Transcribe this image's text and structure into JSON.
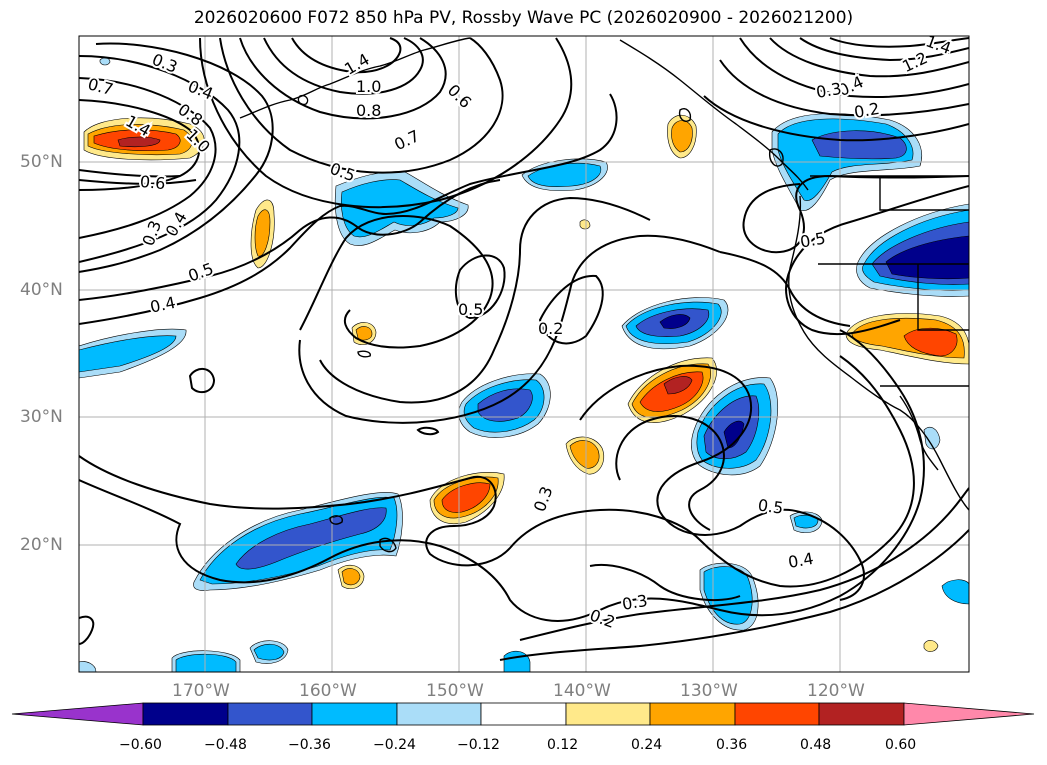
{
  "title": "2026020600 F072 850 hPa PV, Rossby Wave PC (2026020900 - 2026021200)",
  "lat_labels": [
    "50°N",
    "40°N",
    "30°N",
    "20°N"
  ],
  "lon_labels": [
    "170°W",
    "160°W",
    "150°W",
    "140°W",
    "130°W",
    "120°W"
  ],
  "colorbar": {
    "ticks": [
      "−0.60",
      "−0.48",
      "−0.36",
      "−0.24",
      "−0.12",
      "0.12",
      "0.24",
      "0.36",
      "0.48",
      "0.60"
    ],
    "colors": [
      "#9933cc",
      "#00008b",
      "#3355cc",
      "#00bbff",
      "#aaddf8",
      "#ffffff",
      "#ffe98a",
      "#ffa500",
      "#ff4500",
      "#b22222",
      "#ff88aa"
    ]
  },
  "contour_labels": {
    "c1": "0.3",
    "c2": "0.4",
    "c3": "0.7",
    "c4": "0.8",
    "c5": "1.0",
    "c6": "1.4",
    "c7": "0.6",
    "c8": "0.5",
    "c9": "0.3",
    "c10": "0.4",
    "c11": "0.5",
    "c12": "0.4",
    "c13": "1.0",
    "c14": "0.8",
    "c15": "0.7",
    "c16": "1.4",
    "c17": "0.6",
    "c18": "0.5",
    "c19": "0.5",
    "c20": "0.2",
    "c21": "0.3",
    "c22": "0.5",
    "c23": "0.4",
    "c24": "0.3",
    "c25": "0.2",
    "c26": "0.4",
    "c27": "0.3",
    "c28": "0.2",
    "c29": "1.2",
    "c30": "1.4"
  }
}
